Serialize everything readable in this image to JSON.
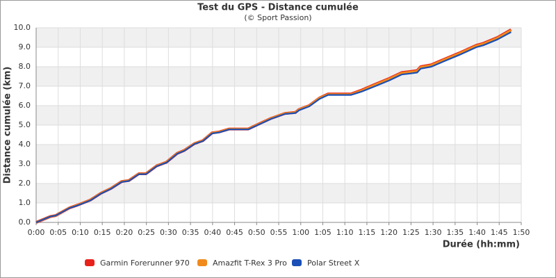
{
  "chart_data": {
    "type": "line",
    "title": "Test du GPS - Distance cumulée",
    "subtitle": "(© Sport Passion)",
    "x_label": "Durée (hh:mm)",
    "y_label": "Distance cumulée (km)",
    "x": [
      0,
      3.2,
      4.4,
      7.6,
      9.5,
      12.3,
      14.7,
      17.0,
      19.4,
      21.0,
      23.3,
      24.9,
      27.3,
      29.6,
      32.0,
      33.6,
      35.9,
      37.8,
      39.9,
      41.5,
      43.8,
      48.1,
      50.9,
      53.3,
      56.4,
      58.8,
      59.6,
      61.9,
      64.3,
      66.2,
      71.4,
      73.8,
      76.9,
      80.1,
      82.9,
      84.8,
      86.4,
      87.2,
      89.6,
      92.7,
      95.9,
      99.8,
      101.4,
      104.6,
      107.7
    ],
    "series": [
      {
        "name": "Garmin Forerunner 970",
        "color": "#e8211a",
        "values": [
          0,
          0.3,
          0.35,
          0.75,
          0.9,
          1.15,
          1.5,
          1.75,
          2.1,
          2.15,
          2.5,
          2.5,
          2.9,
          3.1,
          3.55,
          3.7,
          4.05,
          4.2,
          4.6,
          4.65,
          4.8,
          4.8,
          5.1,
          5.35,
          5.6,
          5.65,
          5.8,
          6.0,
          6.4,
          6.6,
          6.6,
          6.8,
          7.1,
          7.4,
          7.7,
          7.75,
          7.8,
          8.0,
          8.1,
          8.4,
          8.7,
          9.1,
          9.2,
          9.5,
          9.9
        ]
      },
      {
        "name": "Amazfit T-Rex 3 Pro",
        "color": "#f08a1c",
        "values": [
          0,
          0.3,
          0.35,
          0.75,
          0.9,
          1.15,
          1.5,
          1.75,
          2.1,
          2.15,
          2.5,
          2.5,
          2.9,
          3.1,
          3.55,
          3.7,
          4.05,
          4.2,
          4.6,
          4.65,
          4.8,
          4.8,
          5.1,
          5.35,
          5.6,
          5.65,
          5.8,
          6.0,
          6.4,
          6.58,
          6.58,
          6.78,
          7.08,
          7.38,
          7.68,
          7.73,
          7.78,
          7.98,
          8.08,
          8.38,
          8.68,
          9.08,
          9.18,
          9.48,
          9.87
        ]
      },
      {
        "name": "Polar Street X",
        "color": "#1a4fb5",
        "values": [
          0,
          0.3,
          0.35,
          0.74,
          0.88,
          1.13,
          1.48,
          1.73,
          2.08,
          2.13,
          2.48,
          2.48,
          2.88,
          3.08,
          3.53,
          3.68,
          4.03,
          4.18,
          4.57,
          4.62,
          4.78,
          4.78,
          5.07,
          5.32,
          5.57,
          5.62,
          5.76,
          5.96,
          6.35,
          6.55,
          6.55,
          6.72,
          7.0,
          7.3,
          7.6,
          7.65,
          7.7,
          7.9,
          8.0,
          8.3,
          8.6,
          9.0,
          9.1,
          9.4,
          9.78
        ]
      }
    ],
    "xlim": [
      0,
      110
    ],
    "xticks": [
      {
        "value": 0,
        "label": "0:00"
      },
      {
        "value": 5,
        "label": "0:05"
      },
      {
        "value": 10,
        "label": "0:10"
      },
      {
        "value": 15,
        "label": "0:15"
      },
      {
        "value": 20,
        "label": "0:20"
      },
      {
        "value": 25,
        "label": "0:25"
      },
      {
        "value": 30,
        "label": "0:30"
      },
      {
        "value": 35,
        "label": "0:35"
      },
      {
        "value": 40,
        "label": "0:40"
      },
      {
        "value": 45,
        "label": "0:45"
      },
      {
        "value": 50,
        "label": "0:50"
      },
      {
        "value": 55,
        "label": "0:55"
      },
      {
        "value": 60,
        "label": "1:00"
      },
      {
        "value": 65,
        "label": "1:05"
      },
      {
        "value": 70,
        "label": "1:10"
      },
      {
        "value": 75,
        "label": "1:15"
      },
      {
        "value": 80,
        "label": "1:20"
      },
      {
        "value": 85,
        "label": "1:25"
      },
      {
        "value": 90,
        "label": "1:30"
      },
      {
        "value": 95,
        "label": "1:35"
      },
      {
        "value": 100,
        "label": "1:40"
      },
      {
        "value": 105,
        "label": "1:45"
      },
      {
        "value": 110,
        "label": "1:50"
      }
    ],
    "ylim": [
      0,
      10
    ],
    "yticks": [
      {
        "value": 0,
        "label": "0.0"
      },
      {
        "value": 1,
        "label": "1.0"
      },
      {
        "value": 2,
        "label": "2.0"
      },
      {
        "value": 3,
        "label": "3.0"
      },
      {
        "value": 4,
        "label": "4.0"
      },
      {
        "value": 5,
        "label": "5.0"
      },
      {
        "value": 6,
        "label": "6.0"
      },
      {
        "value": 7,
        "label": "7.0"
      },
      {
        "value": 8,
        "label": "8.0"
      },
      {
        "value": 9,
        "label": "9.0"
      },
      {
        "value": 10,
        "label": "10.0"
      }
    ],
    "grid": true,
    "legend": "bottom"
  }
}
